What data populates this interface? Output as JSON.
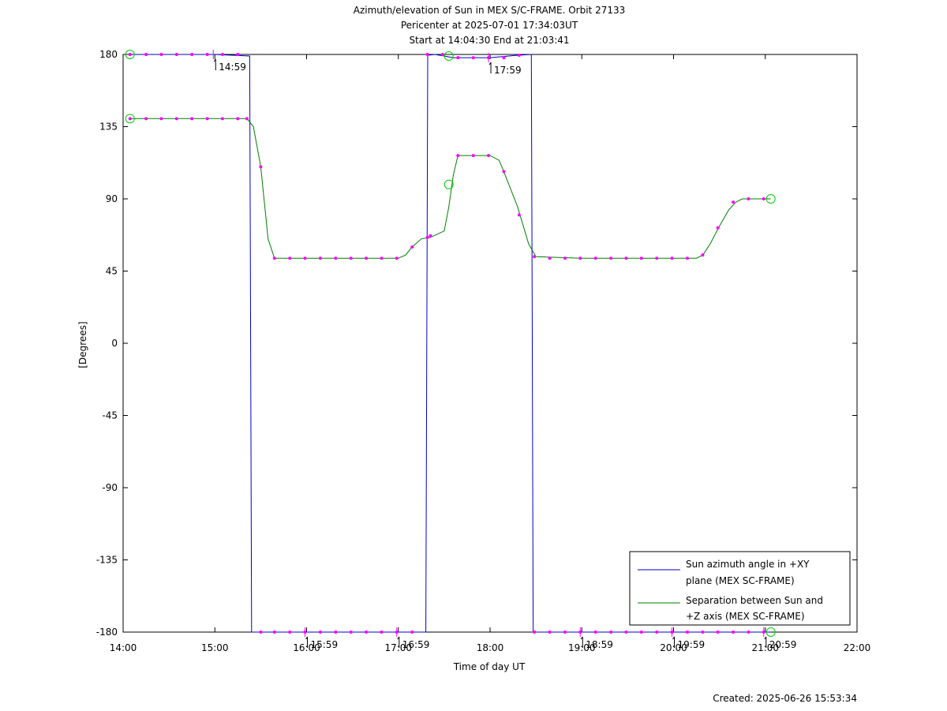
{
  "title_lines": [
    "Azimuth/elevation of Sun in MEX S/C-FRAME.  Orbit 27133",
    "Pericenter at 2025-07-01 17:34:03UT",
    "Start at 14:04:30 End at 21:03:41"
  ],
  "created_label": "Created: 2025-06-26 15:53:34",
  "chart_data": {
    "type": "line",
    "xlabel": "Time of day UT",
    "ylabel": "[Degrees]",
    "x_unit": "hours UT",
    "xlim": [
      14.0,
      22.0
    ],
    "ylim": [
      -180,
      180
    ],
    "x_ticks": [
      14,
      15,
      16,
      17,
      18,
      19,
      20,
      21,
      22
    ],
    "x_tick_labels": [
      "14:00",
      "15:00",
      "16:00",
      "17:00",
      "18:00",
      "19:00",
      "20:00",
      "21:00",
      "22:00"
    ],
    "y_ticks": [
      180,
      135,
      90,
      45,
      0,
      -45,
      -90,
      -135,
      -180
    ],
    "y_tick_labels": [
      "180",
      "135",
      "90",
      "45",
      "0",
      "-45",
      "-90",
      "-135",
      "-180"
    ],
    "grid": false,
    "legend_position": "bottom-right",
    "series": [
      {
        "name": "Sun azimuth angle in +XY plane (MEX SC-FRAME)",
        "legend_lines": [
          "Sun azimuth angle in +XY",
          "plane (MEX SC-FRAME)"
        ],
        "color": "#0000cc",
        "x": [
          14.075,
          14.5,
          15.0,
          15.38,
          15.39,
          15.4,
          15.5,
          16.0,
          16.5,
          17.0,
          17.3,
          17.31,
          17.32,
          17.4,
          17.5,
          17.6,
          18.0,
          18.3,
          18.45,
          18.46,
          18.47,
          18.6,
          19.0,
          19.5,
          20.0,
          20.5,
          21.06
        ],
        "y": [
          180,
          180,
          180,
          179,
          0,
          -180,
          -180,
          -180,
          -180,
          -180,
          -180,
          0,
          179.5,
          180,
          179,
          178,
          178,
          179.5,
          180,
          0,
          -180,
          -180,
          -180,
          -180,
          -180,
          -180,
          -180
        ]
      },
      {
        "name": "Separation between Sun and +Z axis (MEX SC-FRAME)",
        "legend_lines": [
          "Separation between Sun and",
          "+Z axis (MEX SC-FRAME)"
        ],
        "color": "#008000",
        "x": [
          14.075,
          14.5,
          15.0,
          15.35,
          15.42,
          15.5,
          15.58,
          15.65,
          16.0,
          16.5,
          17.0,
          17.08,
          17.15,
          17.25,
          17.35,
          17.5,
          17.55,
          17.6,
          17.65,
          18.0,
          18.1,
          18.15,
          18.3,
          18.42,
          18.5,
          19.0,
          19.5,
          20.0,
          20.25,
          20.32,
          20.4,
          20.5,
          20.6,
          20.68,
          20.75,
          21.06
        ],
        "y": [
          140,
          140,
          140,
          140,
          135,
          110,
          65,
          53,
          53,
          53,
          53,
          55,
          60,
          65,
          66,
          70,
          85,
          105,
          117,
          117,
          114,
          107,
          85,
          62,
          54,
          53,
          53,
          53,
          53,
          55,
          62,
          73,
          83,
          88,
          90,
          90
        ]
      }
    ],
    "sample_markers": [
      [
        14.075,
        180
      ],
      [
        14.25,
        180
      ],
      [
        14.417,
        180
      ],
      [
        14.583,
        180
      ],
      [
        14.75,
        180
      ],
      [
        14.917,
        180
      ],
      [
        15.083,
        180
      ],
      [
        15.25,
        180
      ],
      [
        14.075,
        140
      ],
      [
        14.25,
        140
      ],
      [
        14.417,
        140
      ],
      [
        14.583,
        140
      ],
      [
        14.75,
        140
      ],
      [
        14.917,
        140
      ],
      [
        15.083,
        140
      ],
      [
        15.25,
        140
      ],
      [
        15.35,
        140
      ],
      [
        15.5,
        110
      ],
      [
        15.65,
        53
      ],
      [
        15.817,
        53
      ],
      [
        15.983,
        53
      ],
      [
        16.15,
        53
      ],
      [
        16.317,
        53
      ],
      [
        16.483,
        53
      ],
      [
        16.65,
        53
      ],
      [
        16.817,
        53
      ],
      [
        16.983,
        53
      ],
      [
        17.15,
        60
      ],
      [
        17.317,
        66
      ],
      [
        17.35,
        67
      ],
      [
        17.65,
        117
      ],
      [
        17.817,
        117
      ],
      [
        17.983,
        117
      ],
      [
        18.15,
        107
      ],
      [
        18.317,
        80
      ],
      [
        18.483,
        54
      ],
      [
        15.5,
        -180
      ],
      [
        15.65,
        -180
      ],
      [
        15.817,
        -180
      ],
      [
        15.983,
        -180
      ],
      [
        16.15,
        -180
      ],
      [
        16.317,
        -180
      ],
      [
        16.483,
        -180
      ],
      [
        16.65,
        -180
      ],
      [
        16.817,
        -180
      ],
      [
        16.983,
        -180
      ],
      [
        17.15,
        -180
      ],
      [
        17.317,
        180
      ],
      [
        17.483,
        180
      ],
      [
        17.65,
        178
      ],
      [
        17.817,
        178
      ],
      [
        17.983,
        178
      ],
      [
        18.15,
        178
      ],
      [
        18.317,
        179.5
      ],
      [
        18.483,
        -180
      ],
      [
        18.65,
        -180
      ],
      [
        18.817,
        -180
      ],
      [
        18.983,
        -180
      ],
      [
        19.15,
        -180
      ],
      [
        19.317,
        -180
      ],
      [
        19.483,
        -180
      ],
      [
        19.65,
        -180
      ],
      [
        19.817,
        -180
      ],
      [
        19.983,
        -180
      ],
      [
        20.15,
        -180
      ],
      [
        20.317,
        -180
      ],
      [
        20.483,
        -180
      ],
      [
        20.65,
        -180
      ],
      [
        20.817,
        -180
      ],
      [
        20.983,
        -180
      ],
      [
        18.65,
        53
      ],
      [
        18.817,
        53
      ],
      [
        18.983,
        53
      ],
      [
        19.15,
        53
      ],
      [
        19.317,
        53
      ],
      [
        19.483,
        53
      ],
      [
        19.65,
        53
      ],
      [
        19.817,
        53
      ],
      [
        19.983,
        53
      ],
      [
        20.15,
        53
      ],
      [
        20.317,
        55
      ],
      [
        20.483,
        72
      ],
      [
        20.65,
        88
      ],
      [
        20.817,
        90
      ],
      [
        20.983,
        90
      ]
    ],
    "endpoint_markers": [
      [
        14.075,
        180
      ],
      [
        14.075,
        140
      ],
      [
        17.55,
        179
      ],
      [
        17.55,
        99
      ],
      [
        21.06,
        90
      ],
      [
        21.06,
        -180
      ]
    ],
    "hour_ticks": [
      {
        "x": 14.983,
        "y": 180,
        "label": "14:59"
      },
      {
        "x": 15.983,
        "y": -180,
        "label": "15:59"
      },
      {
        "x": 16.983,
        "y": -180,
        "label": "16:59"
      },
      {
        "x": 17.983,
        "y": 178,
        "label": "17:59"
      },
      {
        "x": 18.983,
        "y": -180,
        "label": "18:59"
      },
      {
        "x": 19.983,
        "y": -180,
        "label": "19:59"
      },
      {
        "x": 20.983,
        "y": -180,
        "label": "20:59"
      }
    ]
  }
}
